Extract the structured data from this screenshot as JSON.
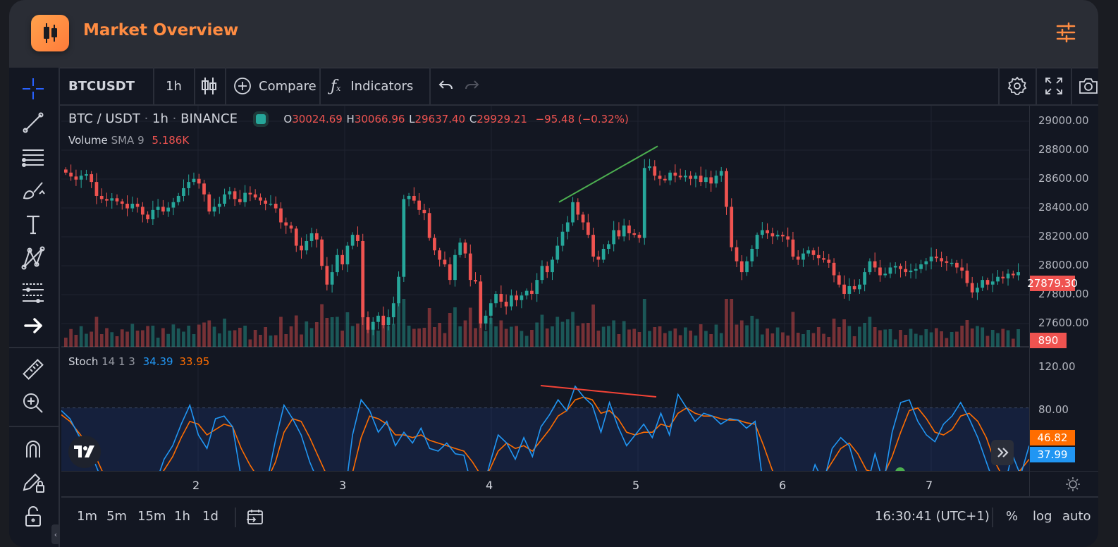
{
  "app": {
    "title": "Market Overview",
    "logo_icon": "candlestick-icon",
    "settings_icon": "sliders-icon"
  },
  "left_toolbar": [
    {
      "name": "crosshair-icon"
    },
    {
      "name": "trend-line-icon"
    },
    {
      "name": "horizontal-lines-icon"
    },
    {
      "name": "brush-icon"
    },
    {
      "name": "text-icon"
    },
    {
      "name": "pattern-icon"
    },
    {
      "name": "fib-icon"
    },
    {
      "name": "arrow-icon"
    },
    {
      "name": "ruler-icon"
    },
    {
      "name": "zoom-in-icon"
    },
    {
      "name": "magnet-icon"
    },
    {
      "name": "pencil-lock-icon"
    },
    {
      "name": "lock-icon"
    }
  ],
  "top_toolbar": {
    "symbol": "BTCUSDT",
    "interval": "1h",
    "compare_label": "Compare",
    "indicators_label": "Indicators"
  },
  "legend": {
    "pair": "BTC / USDT",
    "interval": "1h",
    "exchange": "BINANCE",
    "open_key": "O",
    "open": "30024.69",
    "high_key": "H",
    "high": "30066.96",
    "low_key": "L",
    "low": "29637.40",
    "close_key": "C",
    "close": "29929.21",
    "change": "−95.48 (−0.32%)",
    "volume_label": "Volume",
    "volume_params": "SMA 9",
    "volume_value": "5.186K",
    "stoch_label": "Stoch",
    "stoch_params": "14 1 3",
    "stoch_k": "34.39",
    "stoch_d": "33.95"
  },
  "price_axis": {
    "ticks": [
      "29000.00",
      "28800.00",
      "28600.00",
      "28400.00",
      "28200.00",
      "28000.00",
      "27800.00",
      "27600.00"
    ],
    "last_price": "27879.30",
    "volume_tag": "890",
    "stoch_ticks": [
      "120.00",
      "80.00"
    ],
    "stoch_d_tag": "46.82",
    "stoch_k_tag": "37.99"
  },
  "time_axis": {
    "labels": [
      "2",
      "3",
      "4",
      "5",
      "6",
      "7"
    ]
  },
  "bottom_bar": {
    "ranges": [
      "1m",
      "5m",
      "15m",
      "1h",
      "1d"
    ],
    "time": "16:30:41 (UTC+1)",
    "percent": "%",
    "log": "log",
    "auto": "auto"
  },
  "chart_data": {
    "type": "candlestick",
    "symbol": "BTC / USDT",
    "y_range": [
      27500,
      29050
    ],
    "x_labels": [
      "2",
      "3",
      "4",
      "5",
      "6",
      "7"
    ],
    "colors": {
      "up": "#26a69a",
      "down": "#ef5350",
      "stoch_k": "#2196f3",
      "stoch_d": "#ff6d00",
      "trendline_up": "#4caf50",
      "trendline_down": "#f44336"
    },
    "closes": [
      28620,
      28595,
      28575,
      28600,
      28610,
      28560,
      28470,
      28450,
      28440,
      28455,
      28435,
      28420,
      28390,
      28420,
      28400,
      28350,
      28320,
      28380,
      28400,
      28370,
      28395,
      28430,
      28470,
      28520,
      28560,
      28580,
      28550,
      28480,
      28370,
      28400,
      28420,
      28480,
      28500,
      28450,
      28430,
      28490,
      28480,
      28460,
      28440,
      28420,
      28420,
      28390,
      28300,
      28280,
      28260,
      28150,
      28120,
      28180,
      28230,
      28190,
      28020,
      27900,
      27980,
      28090,
      28030,
      28150,
      28220,
      28180,
      27690,
      27610,
      27660,
      27700,
      27640,
      27690,
      27780,
      27950,
      28450,
      28470,
      28440,
      28380,
      28360,
      28200,
      28120,
      28060,
      28030,
      27930,
      28090,
      28170,
      28100,
      27930,
      27920,
      27650,
      27700,
      27780,
      27840,
      27790,
      27760,
      27830,
      27800,
      27830,
      27860,
      27840,
      27930,
      28020,
      27980,
      28060,
      28150,
      28240,
      28300,
      28430,
      28350,
      28300,
      28220,
      28080,
      28060,
      28130,
      28160,
      28250,
      28210,
      28280,
      28230,
      28220,
      28200,
      28650,
      28660,
      28600,
      28580,
      28570,
      28620,
      28600,
      28590,
      28600,
      28580,
      28600,
      28560,
      28590,
      28550,
      28600,
      28630,
      28400,
      28140,
      28050,
      27980,
      28050,
      28130,
      28220,
      28250,
      28230,
      28210,
      28220,
      28210,
      28190,
      28080,
      28060,
      28100,
      28120,
      28090,
      28070,
      28060,
      28040,
      27960,
      27900,
      27840,
      27890,
      27870,
      27900,
      27980,
      28050,
      28010,
      27960,
      27970,
      28010,
      28020,
      28000,
      27980,
      27990,
      28000,
      28030,
      28050,
      28080,
      28070,
      28050,
      28040,
      28040,
      28010,
      27990,
      27910,
      27850,
      27880,
      27930,
      27900,
      27920,
      27950,
      27940,
      27970,
      27960,
      27980
    ],
    "stoch_k": [
      78,
      72,
      60,
      50,
      38,
      22,
      16,
      12,
      10,
      10,
      32,
      24,
      42,
      52,
      68,
      82,
      60,
      50,
      72,
      74,
      66,
      28,
      22,
      18,
      25,
      56,
      82,
      72,
      60,
      40,
      25,
      18,
      14,
      10,
      60,
      86,
      78,
      62,
      70,
      52,
      62,
      54,
      65,
      50,
      48,
      54,
      46,
      45,
      20,
      14,
      38,
      60,
      54,
      42,
      58,
      44,
      66,
      75,
      86,
      78,
      96,
      88,
      82,
      62,
      84,
      66,
      52,
      60,
      68,
      58,
      76,
      60,
      90,
      80,
      70,
      76,
      74,
      68,
      72,
      71,
      65,
      70,
      20,
      10,
      22,
      28,
      12,
      18,
      38,
      25,
      50,
      58,
      52,
      30,
      20,
      46,
      24,
      62,
      84,
      86,
      70,
      60,
      55,
      68,
      74,
      84,
      72,
      58,
      40,
      22,
      18,
      46,
      30,
      52
    ],
    "stoch_d": [
      75,
      70,
      62,
      54,
      44,
      30,
      22,
      16,
      12,
      11,
      20,
      24,
      34,
      44,
      58,
      70,
      68,
      60,
      64,
      68,
      66,
      50,
      38,
      28,
      26,
      40,
      62,
      72,
      70,
      58,
      44,
      30,
      22,
      16,
      32,
      58,
      74,
      72,
      68,
      60,
      60,
      58,
      60,
      56,
      54,
      52,
      50,
      48,
      40,
      30,
      34,
      48,
      54,
      50,
      52,
      48,
      56,
      64,
      74,
      78,
      86,
      88,
      86,
      76,
      78,
      72,
      62,
      60,
      62,
      62,
      68,
      66,
      76,
      80,
      76,
      74,
      74,
      72,
      71,
      71,
      69,
      68,
      52,
      34,
      22,
      20,
      18,
      18,
      28,
      30,
      40,
      50,
      54,
      46,
      34,
      32,
      30,
      44,
      62,
      78,
      80,
      72,
      62,
      60,
      64,
      74,
      76,
      70,
      58,
      40,
      28,
      30,
      34,
      42
    ],
    "stoch_range": [
      0,
      120
    ],
    "stoch_band": [
      20,
      80
    ]
  }
}
